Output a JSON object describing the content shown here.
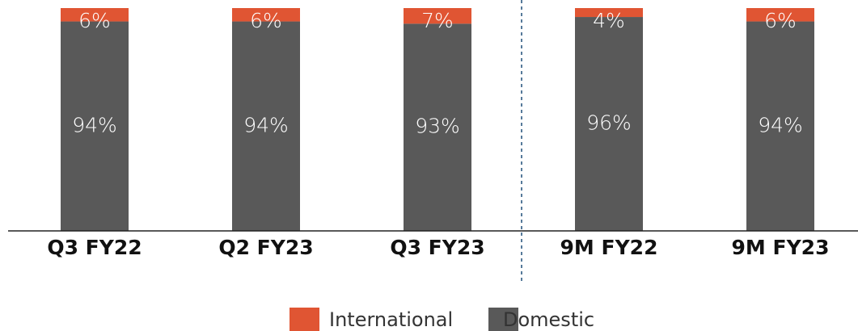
{
  "chart_data": {
    "type": "stacked_bar",
    "categories": [
      "Q3 FY22",
      "Q2 FY23",
      "Q3 FY23",
      "9M FY22",
      "9M FY23"
    ],
    "series": [
      {
        "name": "Domestic",
        "color": "#595959",
        "values": [
          94,
          94,
          93,
          96,
          94
        ],
        "value_labels": [
          "94%",
          "94%",
          "93%",
          "96%",
          "94%"
        ]
      },
      {
        "name": "International",
        "color": "#e05533",
        "values": [
          6,
          6,
          7,
          4,
          6
        ],
        "value_labels": [
          "6%",
          "6%",
          "7%",
          "4%",
          "6%"
        ]
      }
    ],
    "ylim": [
      0,
      100
    ],
    "legend": "bottom"
  }
}
